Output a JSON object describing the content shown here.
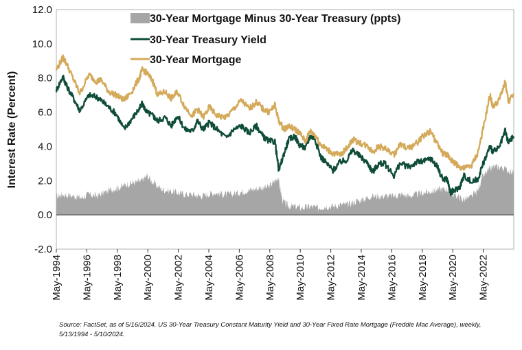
{
  "chart_data": {
    "type": "area",
    "title": "",
    "xlabel": "",
    "ylabel": "Interest Rate (Percent)",
    "ylim": [
      -2.0,
      12.0
    ],
    "yticks": [
      "12.0",
      "10.0",
      "8.0",
      "6.0",
      "4.0",
      "2.0",
      "0.0",
      "-2.0"
    ],
    "xticks": [
      "May-1994",
      "May-1996",
      "May-1998",
      "May-2000",
      "May-2002",
      "May-2004",
      "May-2006",
      "May-2008",
      "May-2010",
      "May-2012",
      "May-2014",
      "May-2016",
      "May-2018",
      "May-2020",
      "May-2022"
    ],
    "xrange": [
      1994.36,
      2024.36
    ],
    "grid": false,
    "legend_position": "top",
    "colors": {
      "spread": "#a6a6a6",
      "treasury": "#0f4d3a",
      "mortgage": "#d4aa5a"
    },
    "series": [
      {
        "name": "30-Year Mortgage Minus 30-Year Treasury (ppts)",
        "type": "area",
        "x": [
          1994.36,
          1994.8,
          1995.5,
          1996.0,
          1996.5,
          1997.0,
          1997.5,
          1998.0,
          1998.5,
          1999.0,
          1999.5,
          2000.0,
          2000.3,
          2000.8,
          2001.3,
          2001.8,
          2002.3,
          2002.8,
          2003.3,
          2003.8,
          2004.3,
          2004.8,
          2005.3,
          2005.8,
          2006.3,
          2006.8,
          2007.3,
          2007.8,
          2008.2,
          2008.6,
          2008.9,
          2009.2,
          2009.6,
          2010.0,
          2010.5,
          2011.0,
          2011.5,
          2012.0,
          2012.5,
          2013.0,
          2013.5,
          2014.0,
          2014.5,
          2015.0,
          2015.5,
          2016.0,
          2016.5,
          2017.0,
          2017.5,
          2018.0,
          2018.5,
          2019.0,
          2019.5,
          2020.0,
          2020.3,
          2020.7,
          2021.0,
          2021.5,
          2022.0,
          2022.3,
          2022.7,
          2023.0,
          2023.5,
          2024.0,
          2024.36
        ],
        "values": [
          1.1,
          1.2,
          1.1,
          1.0,
          1.2,
          1.1,
          1.3,
          1.5,
          1.6,
          1.8,
          1.9,
          2.0,
          2.3,
          1.8,
          1.5,
          1.4,
          1.3,
          1.2,
          1.2,
          1.1,
          1.2,
          1.3,
          1.2,
          1.2,
          1.3,
          1.4,
          1.5,
          1.6,
          1.6,
          1.9,
          2.2,
          0.8,
          0.5,
          0.5,
          0.4,
          0.5,
          0.4,
          0.5,
          0.5,
          0.6,
          0.6,
          0.8,
          0.9,
          1.1,
          1.1,
          1.1,
          1.1,
          1.2,
          1.1,
          1.2,
          1.3,
          1.4,
          1.5,
          1.5,
          1.2,
          1.1,
          0.9,
          1.0,
          1.4,
          2.2,
          2.6,
          2.8,
          2.8,
          2.6,
          2.5
        ]
      },
      {
        "name": "30-Year Treasury Yield",
        "type": "line",
        "x": [
          1994.36,
          1994.8,
          1995.0,
          1995.5,
          1995.9,
          1996.5,
          1997.0,
          1997.3,
          1997.8,
          1998.3,
          1998.8,
          1999.3,
          1999.8,
          2000.0,
          2000.3,
          2000.7,
          2001.0,
          2001.5,
          2001.9,
          2002.3,
          2002.8,
          2003.3,
          2003.6,
          2004.0,
          2004.4,
          2004.9,
          2005.5,
          2006.0,
          2006.5,
          2007.0,
          2007.5,
          2007.9,
          2008.3,
          2008.7,
          2008.95,
          2009.3,
          2009.6,
          2010.0,
          2010.3,
          2010.7,
          2011.0,
          2011.3,
          2011.7,
          2012.0,
          2012.5,
          2013.0,
          2013.4,
          2013.8,
          2014.3,
          2014.8,
          2015.1,
          2015.5,
          2015.9,
          2016.5,
          2016.9,
          2017.5,
          2018.0,
          2018.4,
          2018.9,
          2019.3,
          2019.7,
          2020.0,
          2020.2,
          2020.4,
          2020.8,
          2021.1,
          2021.6,
          2022.0,
          2022.4,
          2022.8,
          2023.0,
          2023.4,
          2023.8,
          2024.0,
          2024.36
        ],
        "values": [
          7.3,
          8.1,
          7.6,
          6.8,
          6.1,
          7.0,
          6.9,
          6.7,
          6.3,
          5.9,
          5.0,
          5.6,
          6.2,
          6.5,
          6.0,
          5.8,
          5.5,
          5.7,
          5.2,
          5.8,
          5.0,
          4.9,
          5.5,
          5.0,
          5.4,
          5.0,
          4.5,
          5.0,
          5.2,
          4.8,
          5.2,
          4.6,
          4.3,
          4.3,
          2.6,
          3.6,
          4.4,
          4.6,
          4.1,
          3.9,
          4.6,
          4.5,
          3.4,
          3.1,
          2.6,
          3.1,
          3.2,
          3.8,
          3.4,
          3.0,
          2.5,
          3.0,
          3.0,
          2.3,
          3.0,
          2.8,
          3.1,
          3.1,
          3.3,
          2.9,
          2.1,
          2.1,
          1.3,
          1.4,
          1.6,
          2.3,
          1.9,
          2.1,
          3.1,
          4.0,
          3.7,
          3.9,
          4.9,
          4.2,
          4.6
        ]
      },
      {
        "name": "30-Year Mortgage",
        "type": "line",
        "x": [
          1994.36,
          1994.8,
          1995.0,
          1995.5,
          1995.9,
          1996.5,
          1997.0,
          1997.3,
          1997.8,
          1998.3,
          1998.8,
          1999.3,
          1999.8,
          2000.0,
          2000.3,
          2000.7,
          2001.0,
          2001.5,
          2001.9,
          2002.3,
          2002.8,
          2003.3,
          2003.6,
          2004.0,
          2004.4,
          2004.9,
          2005.5,
          2006.0,
          2006.5,
          2007.0,
          2007.5,
          2007.9,
          2008.3,
          2008.7,
          2008.95,
          2009.3,
          2009.6,
          2010.0,
          2010.3,
          2010.7,
          2011.0,
          2011.3,
          2011.7,
          2012.0,
          2012.5,
          2013.0,
          2013.4,
          2013.8,
          2014.3,
          2014.8,
          2015.1,
          2015.5,
          2015.9,
          2016.5,
          2016.9,
          2017.5,
          2018.0,
          2018.4,
          2018.9,
          2019.3,
          2019.7,
          2020.0,
          2020.2,
          2020.4,
          2020.8,
          2021.1,
          2021.6,
          2022.0,
          2022.4,
          2022.8,
          2023.0,
          2023.4,
          2023.8,
          2024.0,
          2024.36
        ],
        "values": [
          8.5,
          9.2,
          8.9,
          7.9,
          7.1,
          8.2,
          7.8,
          7.9,
          7.2,
          7.0,
          6.7,
          7.2,
          8.0,
          8.5,
          8.3,
          7.8,
          7.0,
          7.2,
          6.8,
          7.2,
          6.3,
          5.8,
          6.2,
          5.7,
          6.3,
          5.8,
          5.7,
          6.2,
          6.7,
          6.2,
          6.6,
          6.2,
          6.0,
          6.4,
          5.5,
          5.0,
          5.2,
          5.0,
          4.8,
          4.3,
          4.9,
          4.7,
          4.1,
          3.9,
          3.6,
          3.5,
          3.9,
          4.4,
          4.2,
          4.0,
          3.7,
          4.0,
          3.9,
          3.5,
          4.1,
          3.9,
          4.2,
          4.6,
          4.9,
          4.2,
          3.6,
          3.5,
          3.3,
          3.1,
          2.8,
          2.7,
          2.9,
          3.6,
          5.2,
          7.0,
          6.3,
          6.7,
          7.8,
          6.6,
          7.1
        ]
      }
    ]
  },
  "legend": [
    {
      "label": "30-Year Mortgage Minus 30-Year Treasury (ppts)",
      "swatch": "#a6a6a6"
    },
    {
      "label": "30-Year Treasury Yield",
      "swatch": "#0f4d3a"
    },
    {
      "label": "30-Year Mortgage",
      "swatch": "#d4aa5a"
    }
  ],
  "source_note": "Source: FactSet, as of 5/16/2024. US 30-Year Treasury Constant Maturity Yield and 30-Year Fixed Rate Mortgage (Freddie Mac Average), weekly, 5/13/1994 - 5/10/2024."
}
